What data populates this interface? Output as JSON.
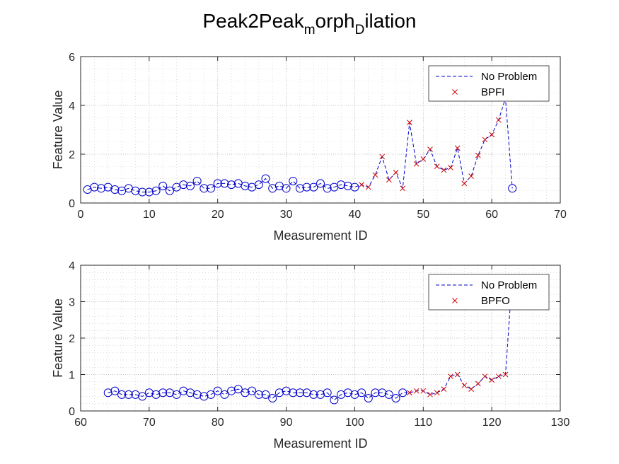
{
  "figure_title": {
    "segments": [
      {
        "text": "Peak2Peak",
        "sub": false
      },
      {
        "text": "m",
        "sub": true
      },
      {
        "text": "orph",
        "sub": false
      },
      {
        "text": "D",
        "sub": true
      },
      {
        "text": "ilation",
        "sub": false
      }
    ]
  },
  "chart_data": [
    {
      "type": "line",
      "xlabel": "Measurement ID",
      "ylabel": "Feature Value",
      "xlim": [
        0,
        70
      ],
      "ylim": [
        0,
        6
      ],
      "xticks": [
        0,
        10,
        20,
        30,
        40,
        50,
        60,
        70
      ],
      "yticks": [
        0,
        2,
        4,
        6
      ],
      "grid": true,
      "minor_grid": true,
      "legend_position": "top-right",
      "legend": [
        {
          "label": "No Problem",
          "marker": "dashed-line",
          "color": "#0000cc"
        },
        {
          "label": "BPFI",
          "marker": "x",
          "color": "#cc0000"
        }
      ],
      "line_series": {
        "style": "dashed",
        "color": "#0000cc",
        "x": [
          1,
          2,
          3,
          4,
          5,
          6,
          7,
          8,
          9,
          10,
          11,
          12,
          13,
          14,
          15,
          16,
          17,
          18,
          19,
          20,
          21,
          22,
          23,
          24,
          25,
          26,
          27,
          28,
          29,
          30,
          31,
          32,
          33,
          34,
          35,
          36,
          37,
          38,
          39,
          40,
          41,
          42,
          43,
          44,
          45,
          46,
          47,
          48,
          49,
          50,
          51,
          52,
          53,
          54,
          55,
          56,
          57,
          58,
          59,
          60,
          61,
          62,
          63
        ],
        "y": [
          0.55,
          0.65,
          0.6,
          0.65,
          0.55,
          0.5,
          0.6,
          0.5,
          0.45,
          0.45,
          0.5,
          0.7,
          0.5,
          0.65,
          0.75,
          0.7,
          0.9,
          0.6,
          0.6,
          0.8,
          0.8,
          0.75,
          0.8,
          0.7,
          0.65,
          0.75,
          1.0,
          0.6,
          0.7,
          0.6,
          0.9,
          0.6,
          0.65,
          0.65,
          0.8,
          0.6,
          0.65,
          0.75,
          0.7,
          0.65,
          0.75,
          0.65,
          1.15,
          1.9,
          0.95,
          1.25,
          0.6,
          3.3,
          1.6,
          1.8,
          2.2,
          1.5,
          1.35,
          1.45,
          2.25,
          0.8,
          1.1,
          1.95,
          2.6,
          2.8,
          3.4,
          4.3,
          0.6
        ]
      },
      "circles": {
        "color": "#0000cc",
        "x": [
          1,
          2,
          3,
          4,
          5,
          6,
          7,
          8,
          9,
          10,
          11,
          12,
          13,
          14,
          15,
          16,
          17,
          18,
          19,
          20,
          21,
          22,
          23,
          24,
          25,
          26,
          27,
          28,
          29,
          30,
          31,
          32,
          33,
          34,
          35,
          36,
          37,
          38,
          39,
          40,
          63
        ],
        "y": [
          0.55,
          0.65,
          0.6,
          0.65,
          0.55,
          0.5,
          0.6,
          0.5,
          0.45,
          0.45,
          0.5,
          0.7,
          0.5,
          0.65,
          0.75,
          0.7,
          0.9,
          0.6,
          0.6,
          0.8,
          0.8,
          0.75,
          0.8,
          0.7,
          0.65,
          0.75,
          1.0,
          0.6,
          0.7,
          0.6,
          0.9,
          0.6,
          0.65,
          0.65,
          0.8,
          0.6,
          0.65,
          0.75,
          0.7,
          0.65,
          0.6
        ]
      },
      "crosses": {
        "color": "#cc0000",
        "x": [
          41,
          42,
          43,
          44,
          45,
          46,
          47,
          48,
          49,
          50,
          51,
          52,
          53,
          54,
          55,
          56,
          57,
          58,
          59,
          60,
          61,
          62
        ],
        "y": [
          0.75,
          0.65,
          1.15,
          1.9,
          0.95,
          1.25,
          0.6,
          3.3,
          1.6,
          1.8,
          2.2,
          1.5,
          1.35,
          1.45,
          2.25,
          0.8,
          1.1,
          1.95,
          2.6,
          2.8,
          3.4,
          4.3
        ]
      }
    },
    {
      "type": "line",
      "xlabel": "Measurement ID",
      "ylabel": "Feature Value",
      "xlim": [
        60,
        130
      ],
      "ylim": [
        0,
        4
      ],
      "xticks": [
        60,
        70,
        80,
        90,
        100,
        110,
        120,
        130
      ],
      "yticks": [
        0,
        1,
        2,
        3,
        4
      ],
      "grid": true,
      "minor_grid": true,
      "legend_position": "top-right",
      "legend": [
        {
          "label": "No Problem",
          "marker": "dashed-line",
          "color": "#0000cc"
        },
        {
          "label": "BPFO",
          "marker": "x",
          "color": "#cc0000"
        }
      ],
      "line_series": {
        "style": "dashed",
        "color": "#0000cc",
        "x": [
          64,
          65,
          66,
          67,
          68,
          69,
          70,
          71,
          72,
          73,
          74,
          75,
          76,
          77,
          78,
          79,
          80,
          81,
          82,
          83,
          84,
          85,
          86,
          87,
          88,
          89,
          90,
          91,
          92,
          93,
          94,
          95,
          96,
          97,
          98,
          99,
          100,
          101,
          102,
          103,
          104,
          105,
          106,
          107,
          108,
          109,
          110,
          111,
          112,
          113,
          114,
          115,
          116,
          117,
          118,
          119,
          120,
          121,
          122,
          123
        ],
        "y": [
          0.5,
          0.55,
          0.45,
          0.45,
          0.45,
          0.4,
          0.5,
          0.45,
          0.5,
          0.5,
          0.45,
          0.55,
          0.5,
          0.45,
          0.4,
          0.45,
          0.55,
          0.45,
          0.55,
          0.6,
          0.5,
          0.55,
          0.45,
          0.45,
          0.35,
          0.5,
          0.55,
          0.5,
          0.5,
          0.5,
          0.45,
          0.45,
          0.5,
          0.3,
          0.45,
          0.5,
          0.45,
          0.5,
          0.35,
          0.5,
          0.5,
          0.45,
          0.35,
          0.5,
          0.5,
          0.55,
          0.55,
          0.45,
          0.5,
          0.6,
          0.95,
          1.0,
          0.7,
          0.6,
          0.75,
          0.95,
          0.85,
          0.95,
          1.0,
          3.7
        ]
      },
      "circles": {
        "color": "#0000cc",
        "x": [
          64,
          65,
          66,
          67,
          68,
          69,
          70,
          71,
          72,
          73,
          74,
          75,
          76,
          77,
          78,
          79,
          80,
          81,
          82,
          83,
          84,
          85,
          86,
          87,
          88,
          89,
          90,
          91,
          92,
          93,
          94,
          95,
          96,
          97,
          98,
          99,
          100,
          101,
          102,
          103,
          104,
          105,
          106,
          107
        ],
        "y": [
          0.5,
          0.55,
          0.45,
          0.45,
          0.45,
          0.4,
          0.5,
          0.45,
          0.5,
          0.5,
          0.45,
          0.55,
          0.5,
          0.45,
          0.4,
          0.45,
          0.55,
          0.45,
          0.55,
          0.6,
          0.5,
          0.55,
          0.45,
          0.45,
          0.35,
          0.5,
          0.55,
          0.5,
          0.5,
          0.5,
          0.45,
          0.45,
          0.5,
          0.3,
          0.45,
          0.5,
          0.45,
          0.5,
          0.35,
          0.5,
          0.5,
          0.45,
          0.35,
          0.5
        ]
      },
      "crosses": {
        "color": "#cc0000",
        "x": [
          108,
          109,
          110,
          111,
          112,
          113,
          114,
          115,
          116,
          117,
          118,
          119,
          120,
          121,
          122
        ],
        "y": [
          0.5,
          0.55,
          0.55,
          0.45,
          0.5,
          0.6,
          0.95,
          1.0,
          0.7,
          0.6,
          0.75,
          0.95,
          0.85,
          0.95,
          1.0
        ]
      }
    }
  ]
}
